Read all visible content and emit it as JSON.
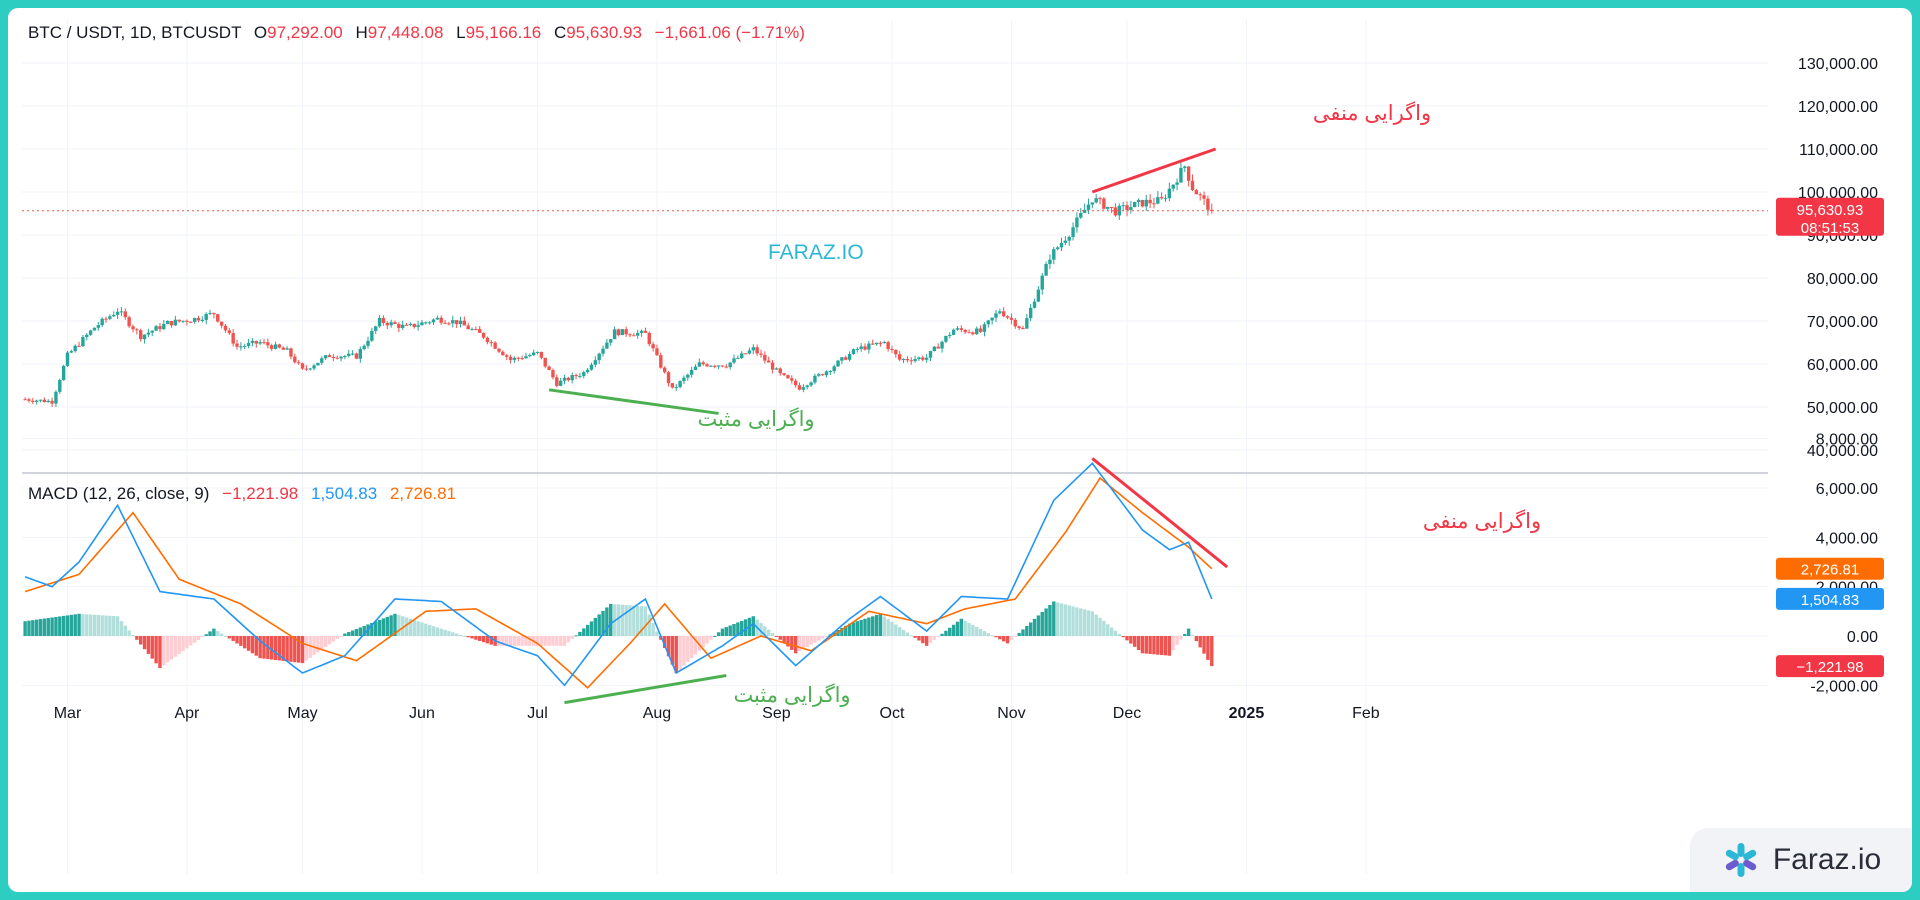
{
  "header": {
    "symbol": "BTC / USDT, 1D, BTCUSDT",
    "o_label": "O",
    "o_value": "97,292.00",
    "h_label": "H",
    "h_value": "97,448.08",
    "l_label": "L",
    "l_value": "95,166.16",
    "c_label": "C",
    "c_value": "95,630.93",
    "change": "−1,661.06 (−1.71%)"
  },
  "macd_header": {
    "label": "MACD (12, 26, close, 9)",
    "hist": "−1,221.98",
    "macd": "1,504.83",
    "signal": "2,726.81"
  },
  "center_watermark": "FARAZ.IO",
  "brand_watermark": "Faraz.io",
  "annotations": {
    "price_negative": "واگرایی منفی",
    "price_positive": "واگرایی مثبت",
    "macd_negative": "واگرایی منفی",
    "macd_positive": "واگرایی مثبت"
  },
  "price_axis": [
    "130,000.00",
    "120,000.00",
    "110,000.00",
    "100,000.00",
    "90,000.00",
    "80,000.00",
    "70,000.00",
    "60,000.00",
    "50,000.00",
    "40,000.00"
  ],
  "macd_axis": [
    "8,000.00",
    "6,000.00",
    "4,000.00",
    "2,000.00",
    "0.00",
    "-2,000.00"
  ],
  "time_axis": [
    "Mar",
    "Apr",
    "May",
    "Jun",
    "Jul",
    "Aug",
    "Sep",
    "Oct",
    "Nov",
    "Dec",
    "2025",
    "Feb"
  ],
  "badges": {
    "price": "95,630.93",
    "countdown": "08:51:53",
    "signal": "2,726.81",
    "macd": "1,504.83",
    "hist": "−1,221.98"
  },
  "colors": {
    "up": "#26a69a",
    "down": "#ef5350",
    "macd": "#2196f3",
    "signal": "#ff6d00",
    "neg_div": "#f23645",
    "pos_div": "#4caf50",
    "brand": "#2cb7d6"
  },
  "chart_data": [
    {
      "type": "candlestick",
      "title": "BTC / USDT, 1D, BTCUSDT",
      "x_range": [
        "2024-02-19",
        "2024-12-23"
      ],
      "ylim": [
        40000,
        130000
      ],
      "last_close": 95630.93,
      "close_by_date": [
        [
          "2024-02-19",
          51800
        ],
        [
          "2024-02-26",
          51300
        ],
        [
          "2024-03-01",
          62000
        ],
        [
          "2024-03-08",
          68500
        ],
        [
          "2024-03-14",
          72500
        ],
        [
          "2024-03-20",
          66500
        ],
        [
          "2024-03-27",
          69500
        ],
        [
          "2024-04-03",
          70500
        ],
        [
          "2024-04-08",
          71800
        ],
        [
          "2024-04-14",
          64000
        ],
        [
          "2024-04-20",
          65000
        ],
        [
          "2024-04-27",
          63000
        ],
        [
          "2024-05-01",
          58500
        ],
        [
          "2024-05-08",
          62000
        ],
        [
          "2024-05-15",
          61800
        ],
        [
          "2024-05-21",
          70000
        ],
        [
          "2024-05-28",
          68500
        ],
        [
          "2024-06-05",
          70500
        ],
        [
          "2024-06-10",
          69800
        ],
        [
          "2024-06-17",
          66500
        ],
        [
          "2024-06-24",
          61000
        ],
        [
          "2024-07-01",
          62500
        ],
        [
          "2024-07-06",
          55500
        ],
        [
          "2024-07-13",
          58000
        ],
        [
          "2024-07-21",
          67500
        ],
        [
          "2024-07-29",
          67000
        ],
        [
          "2024-08-05",
          54000
        ],
        [
          "2024-08-12",
          60000
        ],
        [
          "2024-08-19",
          59800
        ],
        [
          "2024-08-26",
          63500
        ],
        [
          "2024-09-02",
          57500
        ],
        [
          "2024-09-07",
          54500
        ],
        [
          "2024-09-15",
          59000
        ],
        [
          "2024-09-22",
          63500
        ],
        [
          "2024-09-29",
          65000
        ],
        [
          "2024-10-03",
          61000
        ],
        [
          "2024-10-10",
          61500
        ],
        [
          "2024-10-17",
          68000
        ],
        [
          "2024-10-24",
          67500
        ],
        [
          "2024-10-29",
          72500
        ],
        [
          "2024-11-04",
          68000
        ],
        [
          "2024-11-11",
          85000
        ],
        [
          "2024-11-16",
          90500
        ],
        [
          "2024-11-22",
          98500
        ],
        [
          "2024-11-28",
          95500
        ],
        [
          "2024-12-05",
          97500
        ],
        [
          "2024-12-10",
          98000
        ],
        [
          "2024-12-16",
          106000
        ],
        [
          "2024-12-18",
          101000
        ],
        [
          "2024-12-23",
          95630.93
        ]
      ]
    },
    {
      "type": "line",
      "title": "MACD (12, 26, close, 9)",
      "ylim": [
        -3000,
        8000
      ],
      "x_range": [
        "2024-02-19",
        "2024-12-23"
      ],
      "series": [
        {
          "name": "MACD",
          "points": [
            [
              "2024-02-19",
              2400
            ],
            [
              "2024-02-26",
              2000
            ],
            [
              "2024-03-04",
              3000
            ],
            [
              "2024-03-14",
              5300
            ],
            [
              "2024-03-25",
              1800
            ],
            [
              "2024-04-08",
              1500
            ],
            [
              "2024-04-20",
              -200
            ],
            [
              "2024-05-01",
              -1500
            ],
            [
              "2024-05-12",
              -800
            ],
            [
              "2024-05-25",
              1500
            ],
            [
              "2024-06-06",
              1400
            ],
            [
              "2024-06-20",
              -200
            ],
            [
              "2024-07-01",
              -800
            ],
            [
              "2024-07-08",
              -2000
            ],
            [
              "2024-07-20",
              500
            ],
            [
              "2024-07-29",
              1500
            ],
            [
              "2024-08-06",
              -1500
            ],
            [
              "2024-08-18",
              -400
            ],
            [
              "2024-08-26",
              500
            ],
            [
              "2024-09-06",
              -1200
            ],
            [
              "2024-09-20",
              700
            ],
            [
              "2024-09-28",
              1600
            ],
            [
              "2024-10-10",
              200
            ],
            [
              "2024-10-19",
              1600
            ],
            [
              "2024-10-31",
              1500
            ],
            [
              "2024-11-12",
              5500
            ],
            [
              "2024-11-22",
              7000
            ],
            [
              "2024-12-05",
              4300
            ],
            [
              "2024-12-12",
              3500
            ],
            [
              "2024-12-17",
              3800
            ],
            [
              "2024-12-23",
              1504.83
            ]
          ]
        },
        {
          "name": "Signal",
          "points": [
            [
              "2024-02-19",
              1800
            ],
            [
              "2024-03-04",
              2500
            ],
            [
              "2024-03-18",
              5000
            ],
            [
              "2024-03-30",
              2300
            ],
            [
              "2024-04-15",
              1300
            ],
            [
              "2024-05-01",
              -300
            ],
            [
              "2024-05-15",
              -1000
            ],
            [
              "2024-06-02",
              1000
            ],
            [
              "2024-06-15",
              1100
            ],
            [
              "2024-07-01",
              -300
            ],
            [
              "2024-07-14",
              -2100
            ],
            [
              "2024-07-25",
              -300
            ],
            [
              "2024-08-03",
              1300
            ],
            [
              "2024-08-15",
              -900
            ],
            [
              "2024-08-28",
              0
            ],
            [
              "2024-09-10",
              -600
            ],
            [
              "2024-09-25",
              1000
            ],
            [
              "2024-10-10",
              500
            ],
            [
              "2024-10-20",
              1100
            ],
            [
              "2024-11-02",
              1500
            ],
            [
              "2024-11-15",
              4200
            ],
            [
              "2024-11-24",
              6400
            ],
            [
              "2024-12-05",
              5000
            ],
            [
              "2024-12-17",
              3600
            ],
            [
              "2024-12-23",
              2726.81
            ]
          ]
        },
        {
          "name": "Histogram",
          "points": [
            [
              "2024-02-19",
              600
            ],
            [
              "2024-03-04",
              900
            ],
            [
              "2024-03-14",
              800
            ],
            [
              "2024-03-25",
              -1300
            ],
            [
              "2024-04-08",
              300
            ],
            [
              "2024-04-20",
              -900
            ],
            [
              "2024-05-01",
              -1100
            ],
            [
              "2024-05-12",
              100
            ],
            [
              "2024-05-25",
              900
            ],
            [
              "2024-06-06",
              300
            ],
            [
              "2024-06-20",
              -400
            ],
            [
              "2024-07-08",
              -400
            ],
            [
              "2024-07-20",
              1300
            ],
            [
              "2024-07-29",
              1200
            ],
            [
              "2024-08-06",
              -1500
            ],
            [
              "2024-08-18",
              300
            ],
            [
              "2024-08-26",
              800
            ],
            [
              "2024-09-06",
              -700
            ],
            [
              "2024-09-20",
              500
            ],
            [
              "2024-09-28",
              900
            ],
            [
              "2024-10-10",
              -400
            ],
            [
              "2024-10-19",
              700
            ],
            [
              "2024-10-31",
              -300
            ],
            [
              "2024-11-12",
              1400
            ],
            [
              "2024-11-22",
              1000
            ],
            [
              "2024-12-05",
              -700
            ],
            [
              "2024-12-12",
              -800
            ],
            [
              "2024-12-17",
              300
            ],
            [
              "2024-12-23",
              -1221.98
            ]
          ]
        }
      ]
    }
  ]
}
